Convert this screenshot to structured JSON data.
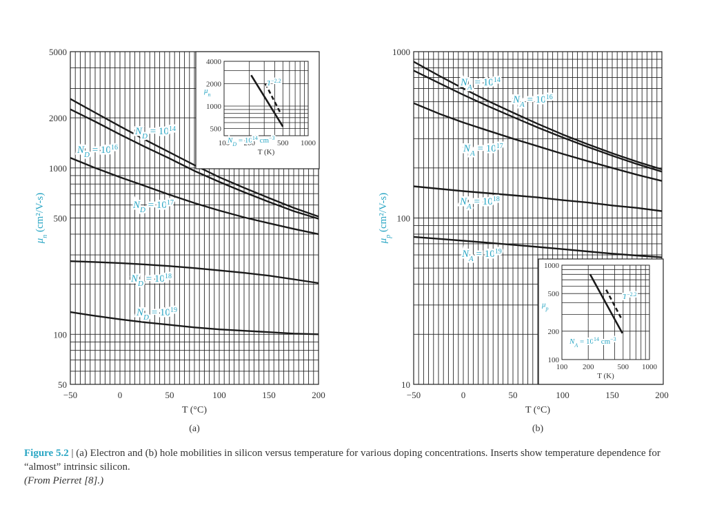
{
  "caption": {
    "figure_number": "Figure 5.2",
    "separator": " | ",
    "text": "(a) Electron and (b) hole mobilities in silicon versus temperature for various doping concentrations. Inserts show temperature dependence for “almost” intrinsic silicon.",
    "source": "(From Pierret [8].)"
  },
  "colors": {
    "label": "#2aa6c4",
    "curve": "#1a1a1a",
    "grid": "#222222"
  },
  "chart_data": [
    {
      "id": "a",
      "type": "line",
      "panel_label": "(a)",
      "xlabel": "T (°C)",
      "ylabel": "μn (cm²/V-s)",
      "ylabel_symbol": "μ",
      "ylabel_sub": "n",
      "ylabel_units": " (cm²/V-s)",
      "xlim": [
        -50,
        200
      ],
      "ylim": [
        50,
        5000
      ],
      "yscale": "log",
      "grid": true,
      "xticks": [
        -50,
        0,
        50,
        100,
        150,
        200
      ],
      "xtick_labels": [
        "−50",
        "0",
        "50",
        "100",
        "150",
        "200"
      ],
      "yticks": [
        50,
        100,
        500,
        1000,
        2000,
        5000
      ],
      "ytick_labels": [
        "50",
        "100",
        "500",
        "1000",
        "2000",
        "5000"
      ],
      "series": [
        {
          "name": "ND = 10^14",
          "lab_main": "N",
          "lab_sub": "D",
          "lab_mid": " = 10",
          "lab_sup": "14",
          "x": [
            -50,
            -25,
            0,
            25,
            50,
            75,
            100,
            125,
            150,
            175,
            200
          ],
          "y": [
            2600,
            2150,
            1780,
            1480,
            1240,
            1040,
            880,
            760,
            660,
            575,
            510
          ]
        },
        {
          "name": "ND = 10^16",
          "lab_main": "N",
          "lab_sub": "D",
          "lab_mid": " = 10",
          "lab_sup": "16",
          "x": [
            -50,
            -25,
            0,
            25,
            50,
            75,
            100,
            125,
            150,
            175,
            200
          ],
          "y": [
            2250,
            1900,
            1590,
            1340,
            1140,
            960,
            825,
            715,
            625,
            550,
            495
          ]
        },
        {
          "name": "ND = 10^17",
          "lab_main": "N",
          "lab_sub": "D",
          "lab_mid": " = 10",
          "lab_sup": "17",
          "x": [
            -50,
            -25,
            0,
            25,
            50,
            75,
            100,
            125,
            150,
            175,
            200
          ],
          "y": [
            1150,
            1000,
            880,
            780,
            690,
            615,
            555,
            505,
            465,
            430,
            400
          ]
        },
        {
          "name": "ND = 10^18",
          "lab_main": "N",
          "lab_sub": "D",
          "lab_mid": " = 10",
          "lab_sup": "18",
          "x": [
            -50,
            -25,
            0,
            25,
            50,
            75,
            100,
            125,
            150,
            175,
            200
          ],
          "y": [
            275,
            272,
            268,
            263,
            257,
            250,
            242,
            234,
            225,
            214,
            203
          ]
        },
        {
          "name": "ND = 10^19",
          "lab_main": "N",
          "lab_sub": "D",
          "lab_mid": " = 10",
          "lab_sup": "19",
          "x": [
            -50,
            -25,
            0,
            25,
            50,
            75,
            100,
            125,
            150,
            175,
            200
          ],
          "y": [
            136,
            129,
            123,
            118,
            114,
            110,
            107,
            105,
            103,
            101,
            100
          ]
        }
      ],
      "inset": {
        "type": "line",
        "xlabel": "T (K)",
        "ylabel_symbol": "μ",
        "ylabel_sub": "n",
        "xlim": [
          100,
          1000
        ],
        "ylim": [
          400,
          4000
        ],
        "xscale": "log",
        "yscale": "log",
        "xticks": [
          100,
          200,
          500,
          1000
        ],
        "xtick_labels": [
          "100",
          "200",
          "500",
          "1000"
        ],
        "yticks": [
          500,
          1000,
          2000,
          4000
        ],
        "ytick_labels": [
          "500",
          "1000",
          "2000",
          "4000"
        ],
        "series": [
          {
            "name": "ND = 10^14 cm^-3",
            "lab_main": "N",
            "lab_sub": "D",
            "lab_mid": " = 10",
            "lab_sup": "14",
            "lab_tail": " cm",
            "lab_sup2": "−3",
            "dashed": false,
            "x": [
              210,
              500
            ],
            "y": [
              2600,
              530
            ]
          },
          {
            "name": "T^-2.2",
            "lab_main": "T",
            "lab_sup": "−2.2",
            "dashed": true,
            "x": [
              310,
              470
            ],
            "y": [
              2000,
              800
            ]
          }
        ]
      }
    },
    {
      "id": "b",
      "type": "line",
      "panel_label": "(b)",
      "xlabel": "T (°C)",
      "ylabel": "μp (cm²/V-s)",
      "ylabel_symbol": "μ",
      "ylabel_sub": "p",
      "ylabel_units": " (cm²/V-s)",
      "xlim": [
        -50,
        200
      ],
      "ylim": [
        10,
        1000
      ],
      "yscale": "log",
      "grid": true,
      "xticks": [
        -50,
        0,
        50,
        100,
        150,
        200
      ],
      "xtick_labels": [
        "−50",
        "0",
        "50",
        "100",
        "150",
        "200"
      ],
      "yticks": [
        10,
        100,
        1000
      ],
      "ytick_labels": [
        "10",
        "100",
        "1000"
      ],
      "series": [
        {
          "name": "NA = 10^14",
          "lab_main": "N",
          "lab_sub": "A",
          "lab_mid": " = 10",
          "lab_sup": "14",
          "x": [
            -50,
            -25,
            0,
            25,
            50,
            75,
            100,
            125,
            150,
            175,
            200
          ],
          "y": [
            870,
            720,
            600,
            505,
            430,
            368,
            318,
            278,
            245,
            218,
            196
          ]
        },
        {
          "name": "NA = 10^16",
          "lab_main": "N",
          "lab_sub": "A",
          "lab_mid": " = 10",
          "lab_sup": "16",
          "x": [
            -50,
            -25,
            0,
            25,
            50,
            75,
            100,
            125,
            150,
            175,
            200
          ],
          "y": [
            770,
            650,
            550,
            470,
            405,
            350,
            305,
            268,
            237,
            211,
            190
          ]
        },
        {
          "name": "NA = 10^17",
          "lab_main": "N",
          "lab_sub": "A",
          "lab_mid": " = 10",
          "lab_sup": "17",
          "x": [
            -50,
            -25,
            0,
            25,
            50,
            75,
            100,
            125,
            150,
            175,
            200
          ],
          "y": [
            490,
            425,
            375,
            335,
            300,
            270,
            243,
            220,
            200,
            182,
            167
          ]
        },
        {
          "name": "NA = 10^18",
          "lab_main": "N",
          "lab_sub": "A",
          "lab_mid": " = 10",
          "lab_sup": "18",
          "x": [
            -50,
            -25,
            0,
            25,
            50,
            75,
            100,
            125,
            150,
            175,
            200
          ],
          "y": [
            155,
            150,
            145,
            141,
            137,
            133,
            128,
            124,
            119,
            115,
            110
          ]
        },
        {
          "name": "NA = 10^19",
          "lab_main": "N",
          "lab_sub": "A",
          "lab_mid": " = 10",
          "lab_sup": "19",
          "x": [
            -50,
            -25,
            0,
            25,
            50,
            75,
            100,
            125,
            150,
            175,
            200
          ],
          "y": [
            77,
            75,
            73,
            71,
            69,
            67,
            65,
            63,
            61,
            59.5,
            58
          ]
        }
      ],
      "inset": {
        "type": "line",
        "xlabel": "T (K)",
        "ylabel_symbol": "μ",
        "ylabel_sub": "p",
        "xlim": [
          100,
          1000
        ],
        "ylim": [
          100,
          1000
        ],
        "xscale": "log",
        "yscale": "log",
        "xticks": [
          100,
          200,
          500,
          1000
        ],
        "xtick_labels": [
          "100",
          "200",
          "500",
          "1000"
        ],
        "yticks": [
          100,
          200,
          500,
          1000
        ],
        "ytick_labels": [
          "100",
          "200",
          "500",
          "1000"
        ],
        "series": [
          {
            "name": "NA = 10^14 cm^-3",
            "lab_main": "N",
            "lab_sub": "A",
            "lab_mid": " = 10",
            "lab_sup": "14",
            "lab_tail": " cm",
            "lab_sup2": "−3",
            "dashed": false,
            "x": [
              210,
              490
            ],
            "y": [
              800,
              190
            ]
          },
          {
            "name": "T^-2.2",
            "lab_main": "T",
            "lab_sup": "−2.2",
            "dashed": true,
            "x": [
              320,
              480
            ],
            "y": [
              550,
              270
            ]
          }
        ]
      }
    }
  ]
}
